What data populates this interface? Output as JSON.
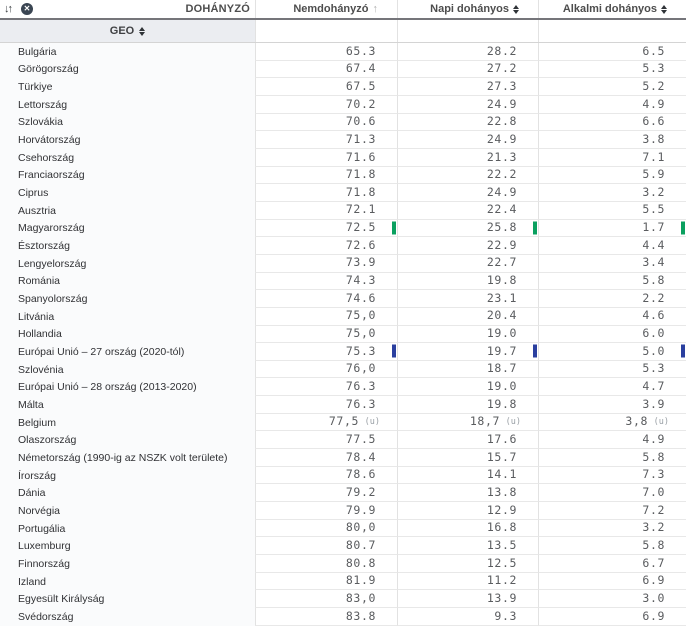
{
  "toolbar": {
    "measure_label": "DOHÁNYZÓ"
  },
  "row_header": {
    "label": "GEO"
  },
  "columns": [
    {
      "label": "Nemdohányzó",
      "sort": "asc"
    },
    {
      "label": "Napi dohányos",
      "sort": "none"
    },
    {
      "label": "Alkalmi dohányos",
      "sort": "none"
    }
  ],
  "colors": {
    "marker_green": "#0aa05f",
    "marker_blue": "#2a3f9f"
  },
  "icons": {
    "sort_icon": "↓↑",
    "close_icon": "✕",
    "sorted_asc_arrow": "↑"
  },
  "rows": [
    {
      "geo": "Bulgária",
      "values": [
        "65.3",
        "28.2",
        "6.5"
      ]
    },
    {
      "geo": "Görögország",
      "values": [
        "67.4",
        "27.2",
        "5.3"
      ]
    },
    {
      "geo": "Türkiye",
      "values": [
        "67.5",
        "27.3",
        "5.2"
      ]
    },
    {
      "geo": "Lettország",
      "values": [
        "70.2",
        "24.9",
        "4.9"
      ]
    },
    {
      "geo": "Szlovákia",
      "values": [
        "70.6",
        "22.8",
        "6.6"
      ]
    },
    {
      "geo": "Horvátország",
      "values": [
        "71.3",
        "24.9",
        "3.8"
      ]
    },
    {
      "geo": "Csehország",
      "values": [
        "71.6",
        "21.3",
        "7.1"
      ]
    },
    {
      "geo": "Franciaország",
      "values": [
        "71.8",
        "22.2",
        "5.9"
      ]
    },
    {
      "geo": "Ciprus",
      "values": [
        "71.8",
        "24.9",
        "3.2"
      ]
    },
    {
      "geo": "Ausztria",
      "values": [
        "72.1",
        "22.4",
        "5.5"
      ]
    },
    {
      "geo": "Magyarország",
      "values": [
        "72.5",
        "25.8",
        "1.7"
      ],
      "marker": "marker_green"
    },
    {
      "geo": "Észtország",
      "values": [
        "72.6",
        "22.9",
        "4.4"
      ]
    },
    {
      "geo": "Lengyelország",
      "values": [
        "73.9",
        "22.7",
        "3.4"
      ]
    },
    {
      "geo": "Románia",
      "values": [
        "74.3",
        "19.8",
        "5.8"
      ]
    },
    {
      "geo": "Spanyolország",
      "values": [
        "74.6",
        "23.1",
        "2.2"
      ]
    },
    {
      "geo": "Litvánia",
      "values": [
        "75,0",
        "20.4",
        "4.6"
      ]
    },
    {
      "geo": "Hollandia",
      "values": [
        "75,0",
        "19.0",
        "6.0"
      ]
    },
    {
      "geo": "Európai Unió – 27 ország (2020-tól)",
      "values": [
        "75.3",
        "19.7",
        "5.0"
      ],
      "marker": "marker_blue"
    },
    {
      "geo": "Szlovénia",
      "values": [
        "76,0",
        "18.7",
        "5.3"
      ]
    },
    {
      "geo": "Európai Unió – 28 ország (2013-2020)",
      "values": [
        "76.3",
        "19.0",
        "4.7"
      ]
    },
    {
      "geo": "Málta",
      "values": [
        "76.3",
        "19.8",
        "3.9"
      ]
    },
    {
      "geo": "Belgium",
      "values": [
        "77,5",
        "18,7",
        "3,8"
      ],
      "flags": [
        "(u)",
        "(u)",
        "(u)"
      ]
    },
    {
      "geo": "Olaszország",
      "values": [
        "77.5",
        "17.6",
        "4.9"
      ]
    },
    {
      "geo": "Németország (1990-ig az NSZK volt területe)",
      "values": [
        "78.4",
        "15.7",
        "5.8"
      ]
    },
    {
      "geo": "Írország",
      "values": [
        "78.6",
        "14.1",
        "7.3"
      ]
    },
    {
      "geo": "Dánia",
      "values": [
        "79.2",
        "13.8",
        "7.0"
      ]
    },
    {
      "geo": "Norvégia",
      "values": [
        "79.9",
        "12.9",
        "7.2"
      ]
    },
    {
      "geo": "Portugália",
      "values": [
        "80,0",
        "16.8",
        "3.2"
      ]
    },
    {
      "geo": "Luxemburg",
      "values": [
        "80.7",
        "13.5",
        "5.8"
      ]
    },
    {
      "geo": "Finnország",
      "values": [
        "80.8",
        "12.5",
        "6.7"
      ]
    },
    {
      "geo": "Izland",
      "values": [
        "81.9",
        "11.2",
        "6.9"
      ]
    },
    {
      "geo": "Egyesült Királyság",
      "values": [
        "83,0",
        "13.9",
        "3.0"
      ]
    },
    {
      "geo": "Svédország",
      "values": [
        "83.8",
        "9.3",
        "6.9"
      ]
    }
  ]
}
